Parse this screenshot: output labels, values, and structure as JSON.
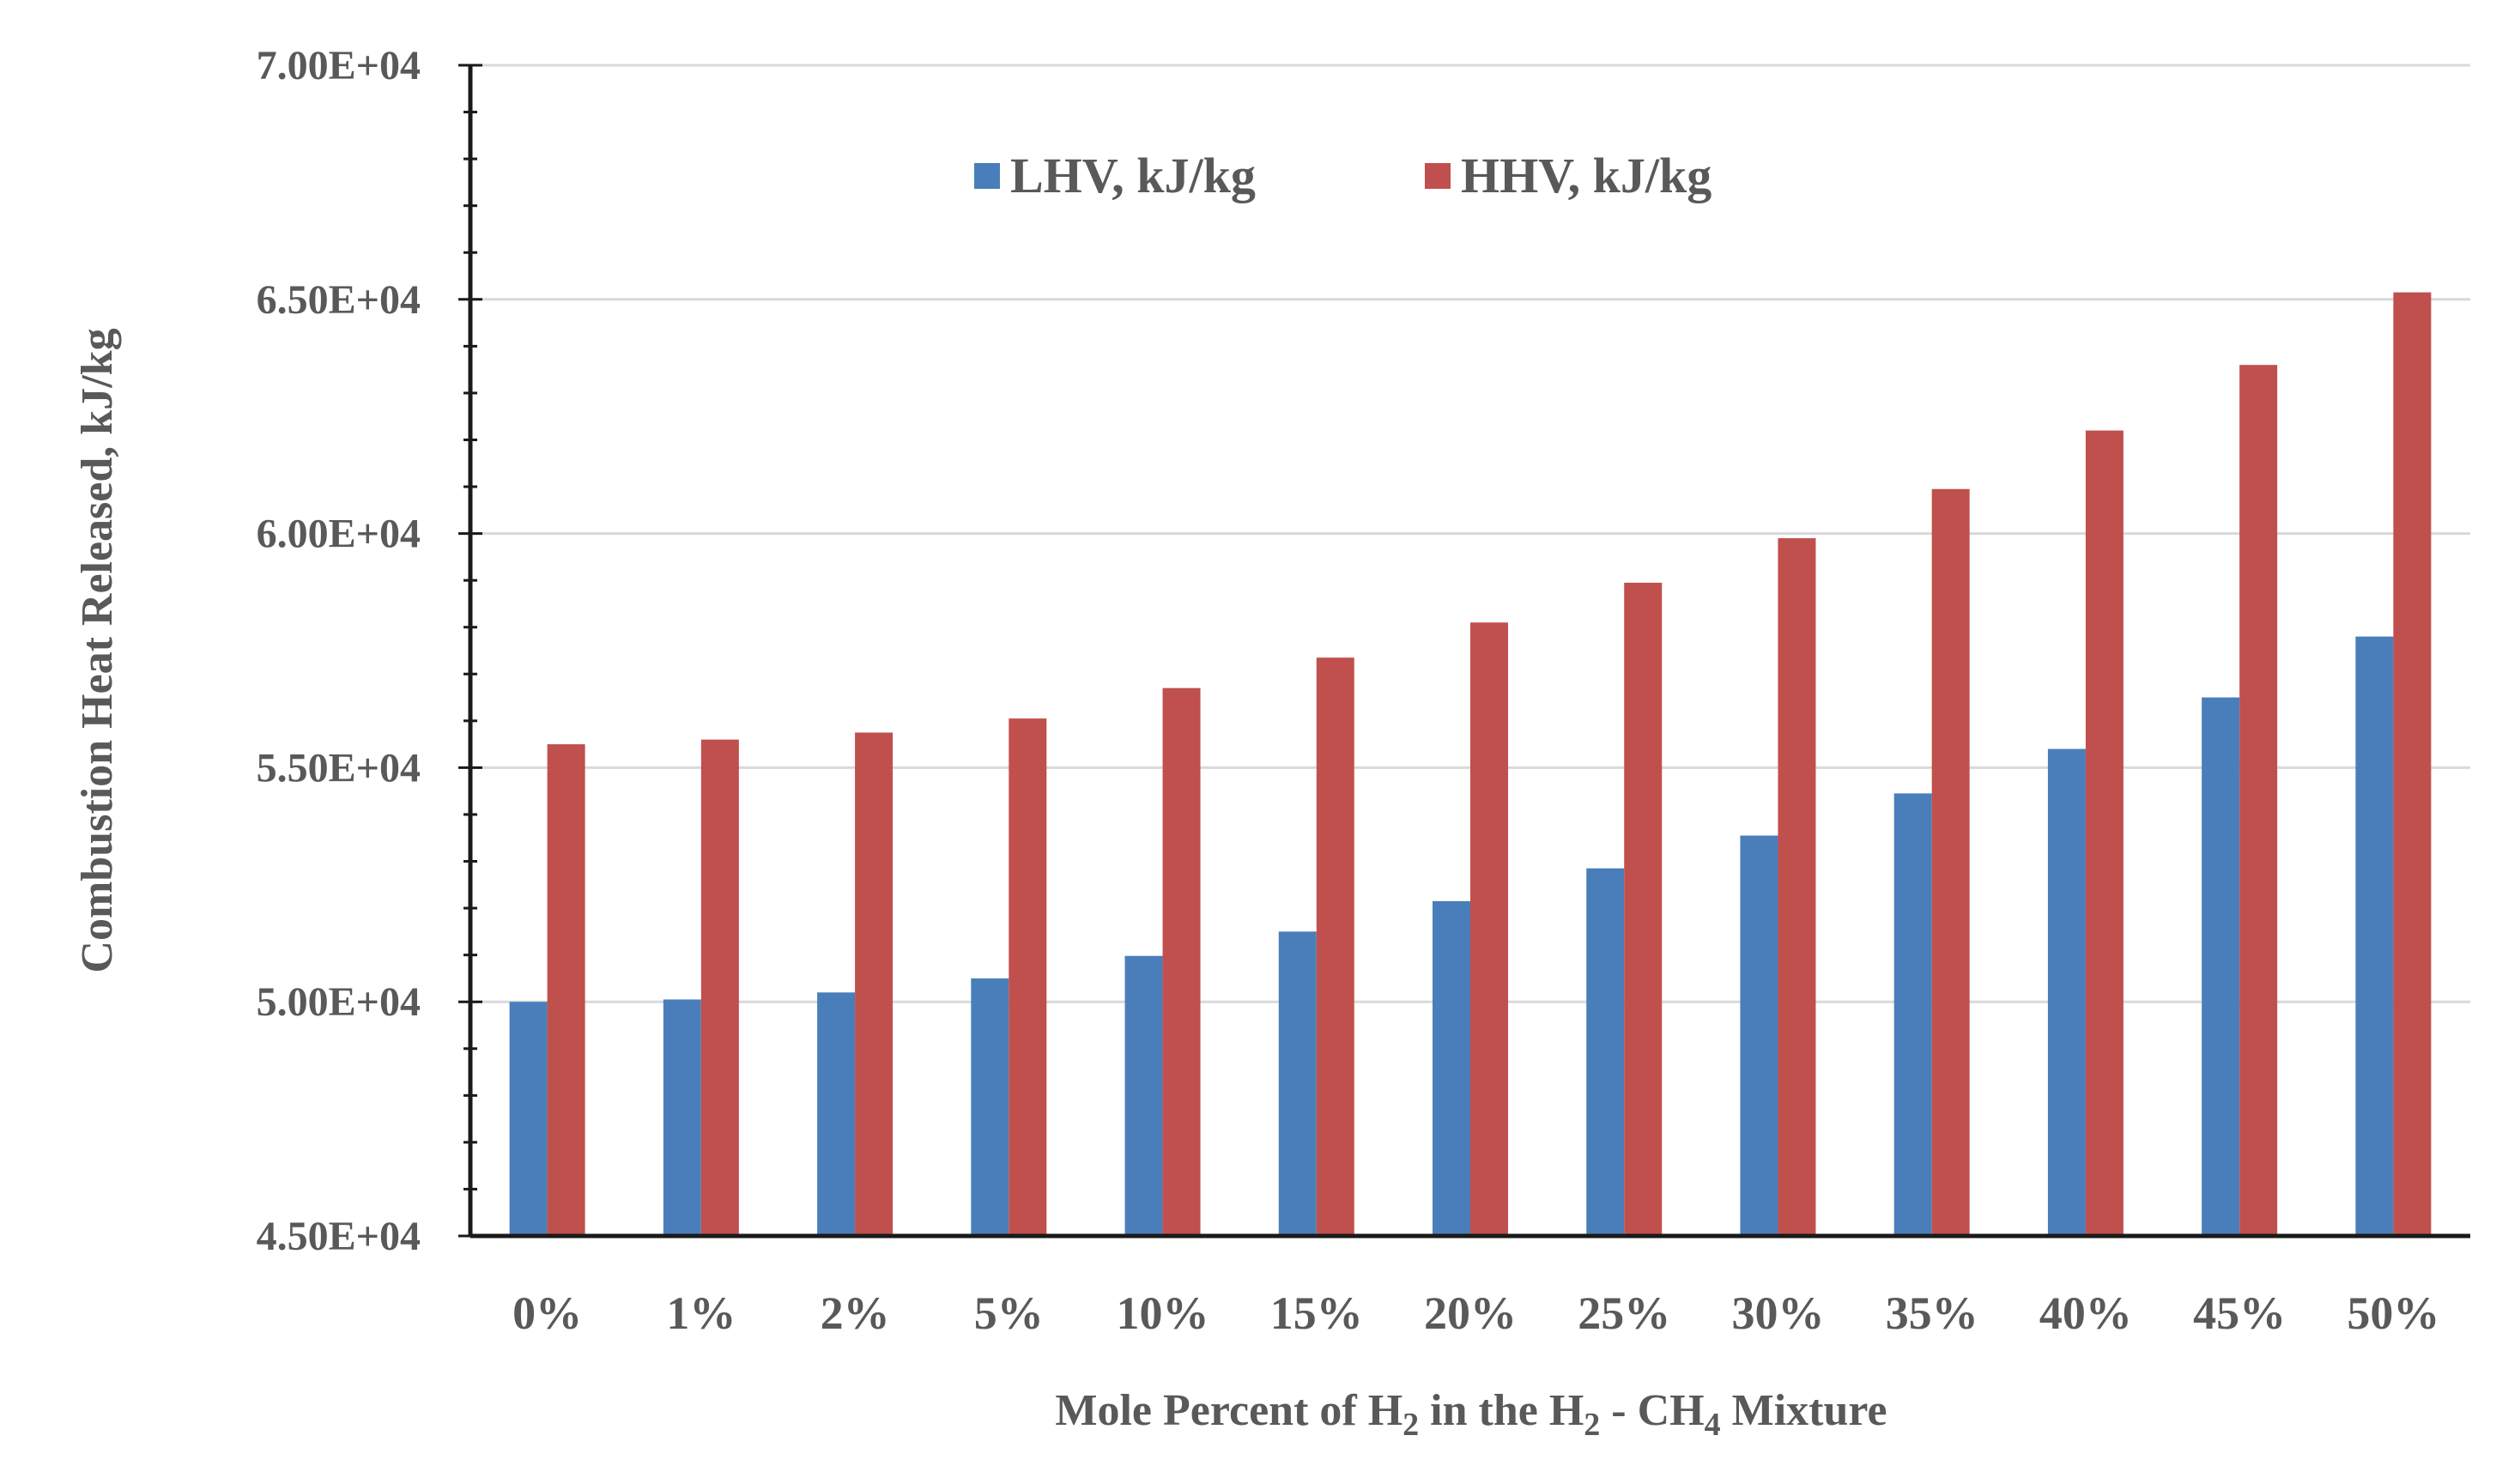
{
  "chart_data": {
    "type": "bar",
    "title": "",
    "ylabel": "Combustion Heat Released, kJ/kg",
    "xlabel": {
      "parts": [
        {
          "text": "Mole Percent of H",
          "sub": false
        },
        {
          "text": "2",
          "sub": true
        },
        {
          "text": " in the H",
          "sub": false
        },
        {
          "text": "2",
          "sub": true
        },
        {
          "text": " - CH",
          "sub": false
        },
        {
          "text": "4",
          "sub": true
        },
        {
          "text": " Mixture",
          "sub": false
        }
      ]
    },
    "categories": [
      "0%",
      "1%",
      "2%",
      "5%",
      "10%",
      "15%",
      "20%",
      "25%",
      "30%",
      "35%",
      "40%",
      "45%",
      "50%"
    ],
    "series": [
      {
        "name": "LHV, kJ/kg",
        "color": "#4a7ebb",
        "values": [
          50000,
          50050,
          50200,
          50500,
          50980,
          51500,
          52150,
          52850,
          53550,
          54450,
          55400,
          56500,
          57800
        ]
      },
      {
        "name": "HHV, kJ/kg",
        "color": "#c0504d",
        "values": [
          55500,
          55600,
          55750,
          56050,
          56700,
          57350,
          58100,
          58950,
          59900,
          60950,
          62200,
          63600,
          65150
        ]
      }
    ],
    "ylim": [
      45000,
      70000
    ],
    "yticks": [
      45000,
      50000,
      55000,
      60000,
      65000,
      70000
    ],
    "ytick_labels": [
      "4.50E+04",
      "5.00E+04",
      "5.50E+04",
      "6.00E+04",
      "6.50E+04",
      "7.00E+04"
    ],
    "grid": true,
    "legend_position": "top-center",
    "colors": {
      "axis": "#1a1a1a",
      "grid": "#d9d9d9",
      "text": "#595959"
    }
  }
}
